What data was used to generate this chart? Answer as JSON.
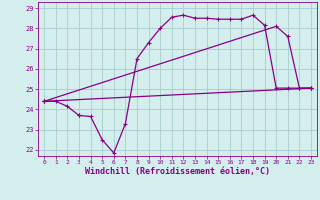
{
  "xlabel": "Windchill (Refroidissement éolien,°C)",
  "bg_color": "#d4eeee",
  "grid_color": "#a8cccc",
  "line_color": "#880088",
  "xlim": [
    -0.5,
    23.5
  ],
  "ylim": [
    21.7,
    29.3
  ],
  "xticks": [
    0,
    1,
    2,
    3,
    4,
    5,
    6,
    7,
    8,
    9,
    10,
    11,
    12,
    13,
    14,
    15,
    16,
    17,
    18,
    19,
    20,
    21,
    22,
    23
  ],
  "yticks": [
    22,
    23,
    24,
    25,
    26,
    27,
    28,
    29
  ],
  "series1_x": [
    0,
    1,
    2,
    3
  ],
  "series1_y": [
    24.4,
    24.4,
    24.15,
    23.7
  ],
  "series2_x": [
    3,
    4,
    5,
    6,
    7,
    8,
    9,
    10,
    11,
    12,
    13,
    14,
    15,
    16,
    17,
    18,
    19,
    20,
    21,
    22,
    23
  ],
  "series2_y": [
    23.7,
    23.65,
    22.5,
    21.85,
    23.3,
    26.5,
    27.3,
    28.0,
    28.55,
    28.65,
    28.5,
    28.5,
    28.45,
    28.45,
    28.45,
    28.65,
    28.15,
    25.05,
    25.05,
    25.05,
    25.05
  ],
  "series3_x": [
    0,
    23
  ],
  "series3_y": [
    24.4,
    25.05
  ],
  "series4_x": [
    0,
    20,
    21,
    22,
    23
  ],
  "series4_y": [
    24.4,
    28.1,
    27.6,
    25.05,
    25.05
  ]
}
